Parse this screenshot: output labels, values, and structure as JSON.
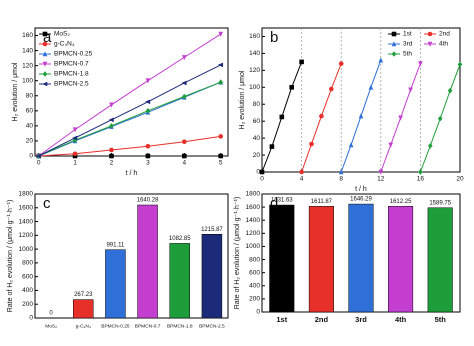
{
  "chart_data": [
    {
      "type": "line",
      "label": "a",
      "xlabel": "t / h",
      "ylabel": "H₂ evolution / μmol",
      "xlim": [
        -0.1,
        5.2
      ],
      "xticks": [
        0,
        1,
        2,
        3,
        4,
        5
      ],
      "ylim": [
        0,
        170
      ],
      "yticks": [
        0,
        20,
        40,
        60,
        80,
        100,
        120,
        140,
        160
      ],
      "legend": "upper left",
      "series": [
        {
          "name": "MoS₂",
          "color": "#000000",
          "marker": "square",
          "x": [
            0,
            1,
            2,
            3,
            4,
            5
          ],
          "values": [
            0,
            0,
            0,
            0,
            0,
            0
          ]
        },
        {
          "name": "g-C₃N₄",
          "color": "#e8302a",
          "marker": "circle",
          "x": [
            0,
            1,
            2,
            3,
            4,
            5
          ],
          "values": [
            0,
            3,
            8,
            13,
            19,
            26
          ]
        },
        {
          "name": "BPMCN-0.25",
          "color": "#2f6fd8",
          "marker": "triangle-up",
          "x": [
            0,
            1,
            2,
            3,
            4,
            5
          ],
          "values": [
            0,
            20,
            39,
            58,
            78,
            98
          ]
        },
        {
          "name": "BPMCN-0.7",
          "color": "#c43fd0",
          "marker": "triangle-down",
          "x": [
            0,
            1,
            2,
            3,
            4,
            5
          ],
          "values": [
            0,
            35,
            68,
            100,
            131,
            162
          ]
        },
        {
          "name": "BPMCN-1.8",
          "color": "#1e9e3a",
          "marker": "diamond",
          "x": [
            0,
            1,
            2,
            3,
            4,
            5
          ],
          "values": [
            0,
            21,
            40,
            60,
            79,
            98
          ]
        },
        {
          "name": "BPMCN-2.5",
          "color": "#1c2a7a",
          "marker": "triangle-left",
          "x": [
            0,
            1,
            2,
            3,
            4,
            5
          ],
          "values": [
            0,
            24,
            48,
            72,
            97,
            121
          ]
        }
      ]
    },
    {
      "type": "line",
      "label": "b",
      "xlabel": "t / h",
      "ylabel": "H₂ evolution / μmol",
      "xlim": [
        0,
        20
      ],
      "xticks": [
        0,
        4,
        8,
        12,
        16,
        20
      ],
      "ylim": [
        0,
        170
      ],
      "yticks": [
        0,
        20,
        40,
        60,
        80,
        100,
        120,
        140,
        160
      ],
      "legend": "upper right",
      "series": [
        {
          "name": "1st",
          "color": "#000000",
          "marker": "square",
          "x": [
            0,
            1,
            2,
            3,
            4
          ],
          "values": [
            0,
            30,
            65,
            100,
            130
          ]
        },
        {
          "name": "2nd",
          "color": "#e8302a",
          "marker": "circle",
          "x": [
            4,
            5,
            6,
            7,
            8
          ],
          "values": [
            0,
            33,
            66,
            98,
            128
          ]
        },
        {
          "name": "3rd",
          "color": "#2f6fd8",
          "marker": "triangle-up",
          "x": [
            8,
            9,
            10,
            11,
            12
          ],
          "values": [
            0,
            32,
            66,
            100,
            132
          ]
        },
        {
          "name": "4th",
          "color": "#c43fd0",
          "marker": "triangle-down",
          "x": [
            12,
            13,
            14,
            15,
            16
          ],
          "values": [
            0,
            32,
            64,
            97,
            128
          ]
        },
        {
          "name": "5th",
          "color": "#1e9e3a",
          "marker": "diamond",
          "x": [
            16,
            17,
            18,
            19,
            20
          ],
          "values": [
            0,
            31,
            63,
            96,
            127
          ]
        }
      ]
    },
    {
      "type": "bar",
      "label": "c",
      "ylabel": "Rate of H₂ evolution / (μmol·g⁻¹·h⁻¹)",
      "ylim": [
        0,
        1800
      ],
      "yticks": [
        0,
        200,
        400,
        600,
        800,
        1000,
        1200,
        1400,
        1600,
        1800
      ],
      "categories": [
        "MoS₂",
        "g-C₃N₄",
        "BPMCN-0.25",
        "BPMCN-0.7",
        "BPMCN-1.8",
        "BPMCN-2.5"
      ],
      "values": [
        0,
        267.23,
        991.11,
        1640.28,
        1082.85,
        1215.87
      ],
      "colors": [
        "#000000",
        "#e8302a",
        "#2f6fd8",
        "#c43fd0",
        "#1e9e3a",
        "#1c2a7a"
      ]
    },
    {
      "type": "bar",
      "label": "d",
      "ylabel": "Rate of H₂ evolution / (μmol·g⁻¹·h⁻¹)",
      "ylim": [
        0,
        1800
      ],
      "yticks": [
        0,
        200,
        400,
        600,
        800,
        1000,
        1200,
        1400,
        1600,
        1800
      ],
      "categories": [
        "1st",
        "2nd",
        "3rd",
        "4th",
        "5th"
      ],
      "values": [
        1631.63,
        1611.87,
        1646.29,
        1612.25,
        1589.75
      ],
      "colors": [
        "#000000",
        "#e8302a",
        "#2f6fd8",
        "#c43fd0",
        "#1e9e3a"
      ]
    }
  ]
}
